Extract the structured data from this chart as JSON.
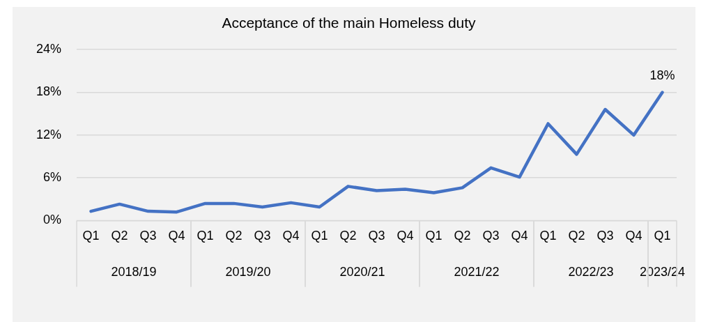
{
  "chart_data": {
    "type": "line",
    "title": "Acceptance of the main Homeless duty",
    "categories": [
      "Q1",
      "Q2",
      "Q3",
      "Q4",
      "Q1",
      "Q2",
      "Q3",
      "Q4",
      "Q1",
      "Q2",
      "Q3",
      "Q4",
      "Q1",
      "Q2",
      "Q3",
      "Q4",
      "Q1",
      "Q2",
      "Q3",
      "Q4",
      "Q1"
    ],
    "series": [
      {
        "color": "#4472c4",
        "values": [
          1.3,
          2.3,
          1.3,
          1.2,
          2.4,
          2.4,
          1.9,
          2.5,
          1.9,
          4.8,
          4.2,
          4.4,
          3.9,
          4.6,
          7.4,
          6.1,
          13.6,
          9.3,
          15.6,
          12.0,
          18
        ],
        "value_labels": [
          null,
          null,
          null,
          null,
          null,
          null,
          null,
          null,
          null,
          null,
          null,
          null,
          null,
          null,
          null,
          null,
          null,
          null,
          null,
          null,
          "18%"
        ]
      }
    ],
    "annotations": [
      "2018/19",
      "2019/20",
      "2020/21",
      "2021/22",
      "2022/23",
      "2023/24"
    ],
    "ylim": [
      0,
      24
    ],
    "yticks": [
      {
        "value": 0,
        "label": "0%"
      },
      {
        "value": 6,
        "label": "6%"
      },
      {
        "value": 12,
        "label": "12%"
      },
      {
        "value": 18,
        "label": "18%"
      },
      {
        "value": 24,
        "label": "24%"
      }
    ],
    "grid": "y",
    "legend": false,
    "marker": "none",
    "line_style": "solid"
  }
}
